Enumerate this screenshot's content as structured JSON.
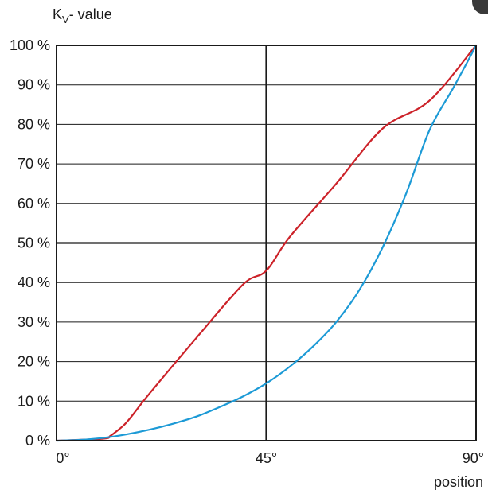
{
  "chart_data": {
    "type": "line",
    "title": "",
    "ylabel": {
      "main": "K",
      "sub": "V",
      "rest": "- value"
    },
    "xlabel": "position",
    "xlim": [
      0,
      90
    ],
    "ylim": [
      0,
      100
    ],
    "x_ticks": [
      {
        "value": 0,
        "label": "0°"
      },
      {
        "value": 45,
        "label": "45°"
      },
      {
        "value": 90,
        "label": "90°"
      }
    ],
    "y_ticks": [
      {
        "value": 0,
        "label": "0 %"
      },
      {
        "value": 10,
        "label": "10 %"
      },
      {
        "value": 20,
        "label": "20 %"
      },
      {
        "value": 30,
        "label": "30 %"
      },
      {
        "value": 40,
        "label": "40 %"
      },
      {
        "value": 50,
        "label": "50 %"
      },
      {
        "value": 60,
        "label": "60 %"
      },
      {
        "value": 70,
        "label": "70 %"
      },
      {
        "value": 80,
        "label": "80 %"
      },
      {
        "value": 90,
        "label": "90 %"
      },
      {
        "value": 100,
        "label": "100 %"
      }
    ],
    "emphasized_gridlines": {
      "x": [
        45
      ],
      "y": [
        50
      ]
    },
    "grid": true,
    "legend": "none",
    "series": [
      {
        "color": "#cc2229",
        "x": [
          0,
          10,
          11.5,
          13,
          14.5,
          16,
          20,
          30,
          40,
          45,
          50,
          60,
          70,
          80,
          90
        ],
        "y": [
          0,
          0.5,
          1.2,
          2.5,
          4,
          6,
          12,
          26,
          39.5,
          43,
          51.5,
          65,
          79,
          86,
          100
        ]
      },
      {
        "color": "#1c9ad6",
        "x": [
          0,
          5,
          10,
          15,
          20,
          25,
          30,
          35,
          40,
          45,
          50,
          55,
          60,
          65,
          70,
          75,
          80,
          85,
          88,
          90
        ],
        "y": [
          0,
          0.2,
          0.7,
          1.6,
          2.8,
          4.3,
          6.1,
          8.5,
          11.2,
          14.5,
          18.7,
          23.8,
          30,
          38.2,
          49,
          62.5,
          78.5,
          89,
          95.5,
          100
        ]
      }
    ]
  }
}
